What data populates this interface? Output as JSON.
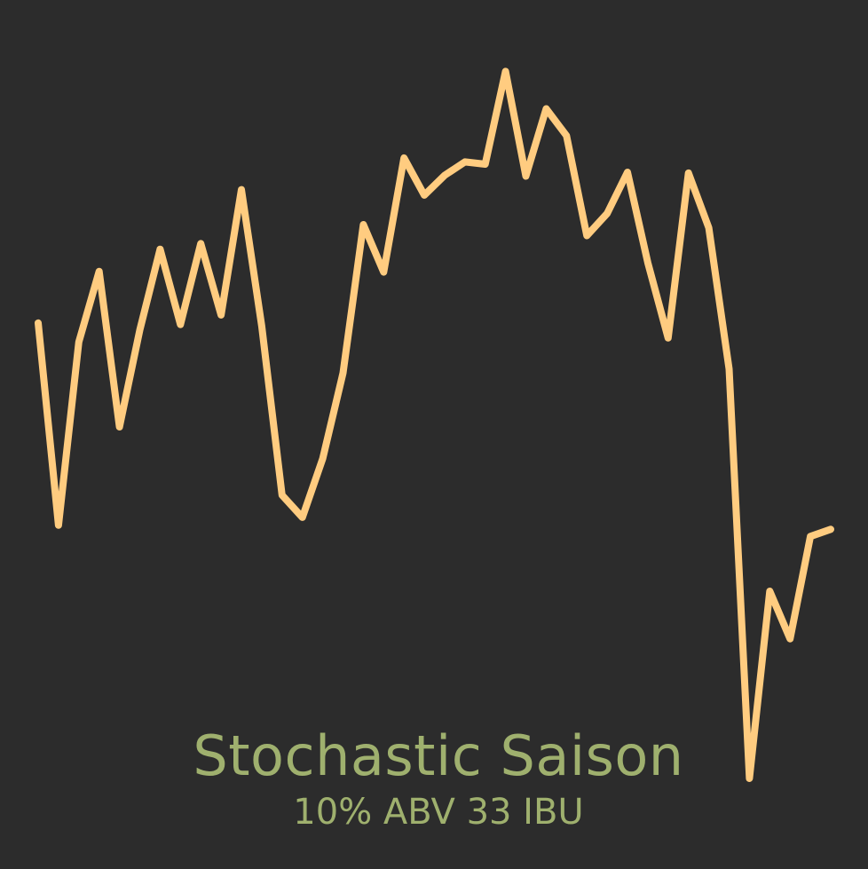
{
  "label": {
    "name": "Stochastic Saison",
    "stats": "10% ABV 33 IBU"
  },
  "colors": {
    "background": "#2c2c2c",
    "line": "#ffcc80",
    "text": "#9fb06e"
  },
  "chart_data": {
    "type": "line",
    "y": [
      0.64,
      0.385,
      0.616,
      0.705,
      0.509,
      0.631,
      0.733,
      0.638,
      0.74,
      0.65,
      0.808,
      0.636,
      0.423,
      0.395,
      0.469,
      0.577,
      0.764,
      0.704,
      0.848,
      0.801,
      0.826,
      0.843,
      0.84,
      0.957,
      0.825,
      0.91,
      0.876,
      0.75,
      0.778,
      0.83,
      0.716,
      0.621,
      0.829,
      0.76,
      0.582,
      0.066,
      0.302,
      0.242,
      0.371,
      0.38
    ]
  }
}
